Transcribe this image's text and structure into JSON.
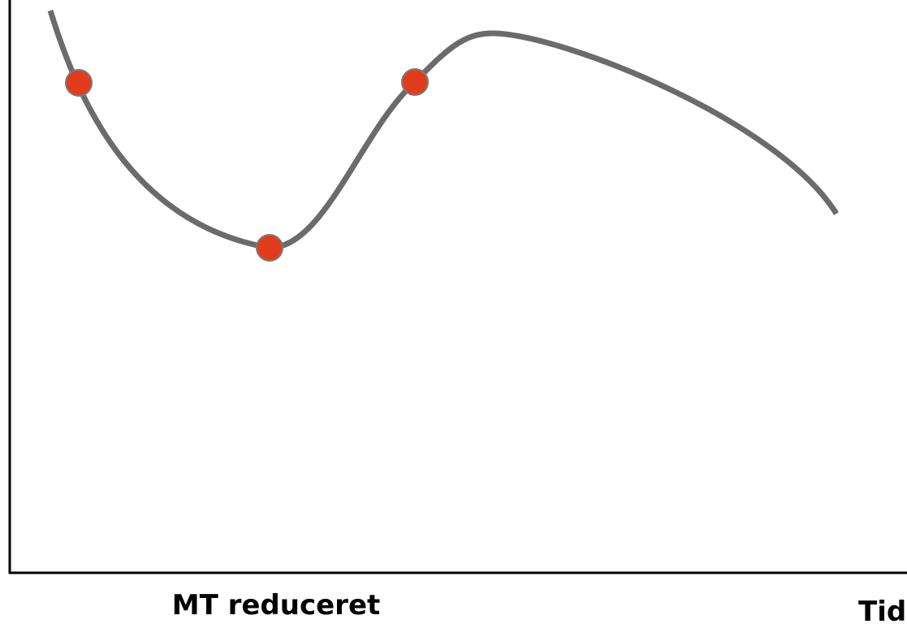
{
  "labels": {
    "x_label": "MT reduceret",
    "axis_end": "Tid"
  }
}
